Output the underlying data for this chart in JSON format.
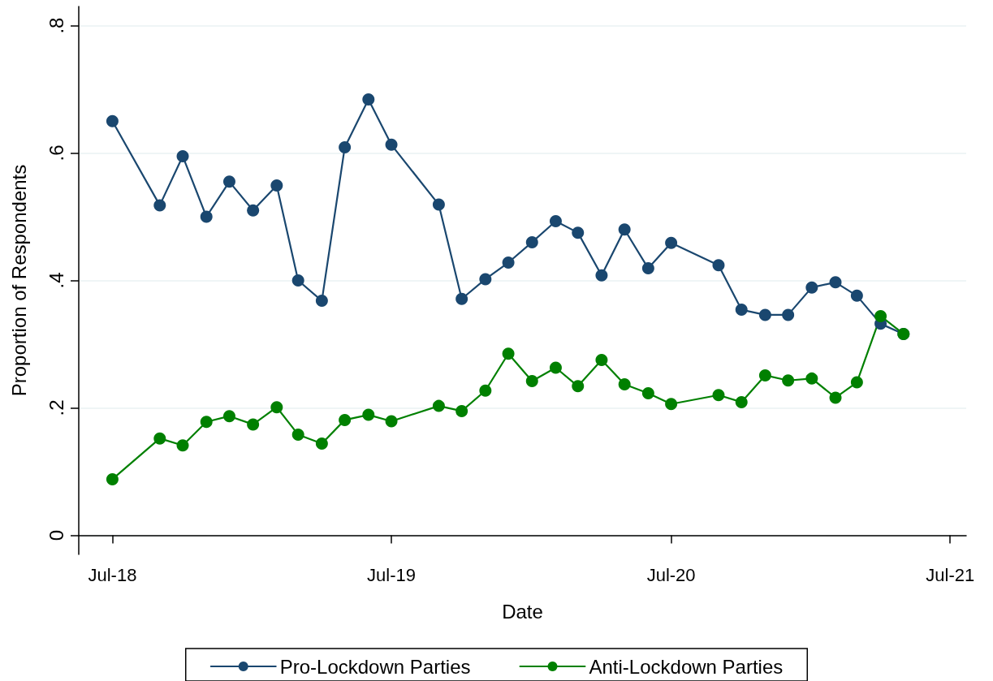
{
  "chart_data": {
    "type": "line",
    "xlabel": "Date",
    "ylabel": "Proportion of Respondents",
    "x": [
      "2018-07",
      "2018-09",
      "2018-10",
      "2018-11",
      "2018-12",
      "2019-01",
      "2019-02",
      "2019-03",
      "2019-04",
      "2019-05",
      "2019-06",
      "2019-07",
      "2019-09",
      "2019-10",
      "2019-11",
      "2019-12",
      "2020-01",
      "2020-02",
      "2020-03",
      "2020-04",
      "2020-05",
      "2020-06",
      "2020-07",
      "2020-09",
      "2020-10",
      "2020-11",
      "2020-12",
      "2021-01",
      "2021-02",
      "2021-03",
      "2021-04",
      "2021-05"
    ],
    "series": [
      {
        "name": "Pro-Lockdown Parties",
        "color": "#1a476f",
        "values": [
          0.65,
          0.518,
          0.595,
          0.5,
          0.555,
          0.51,
          0.549,
          0.4,
          0.368,
          0.609,
          0.684,
          0.613,
          0.519,
          0.371,
          0.402,
          0.428,
          0.46,
          0.493,
          0.475,
          0.408,
          0.48,
          0.419,
          0.459,
          0.424,
          0.354,
          0.346,
          0.346,
          0.389,
          0.397,
          0.376,
          0.332,
          0.316
        ]
      },
      {
        "name": "Anti-Lockdown Parties",
        "color": "#008000",
        "values": [
          0.088,
          0.152,
          0.141,
          0.178,
          0.187,
          0.174,
          0.201,
          0.158,
          0.144,
          0.181,
          0.189,
          0.179,
          0.203,
          0.195,
          0.227,
          0.285,
          0.242,
          0.263,
          0.234,
          0.275,
          0.237,
          0.223,
          0.206,
          0.22,
          0.209,
          0.251,
          0.243,
          0.246,
          0.216,
          0.24,
          0.344,
          0.316
        ]
      }
    ],
    "xlim": [
      "2018-05-18",
      "2021-07-22"
    ],
    "xticks": [
      {
        "value": "2018-07",
        "label": "Jul-18"
      },
      {
        "value": "2019-07",
        "label": "Jul-19"
      },
      {
        "value": "2020-07",
        "label": "Jul-20"
      },
      {
        "value": "2021-07",
        "label": "Jul-21"
      }
    ],
    "ylim": [
      -0.03,
      0.83
    ],
    "yticks": [
      0,
      {
        "value": 0.2,
        "label": ".2"
      },
      {
        "value": 0.4,
        "label": ".4"
      },
      {
        "value": 0.6,
        "label": ".6"
      },
      {
        "value": 0.8,
        "label": ".8"
      }
    ],
    "grid": "y",
    "legend": "bottom",
    "marker": "circle",
    "line_style": "solid"
  }
}
